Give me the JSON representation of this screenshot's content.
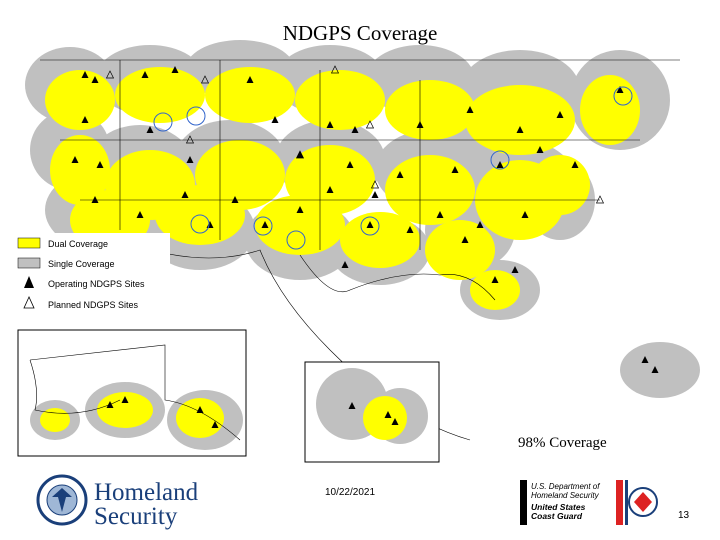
{
  "header": {
    "title": "NDGPS Coverage"
  },
  "legend": {
    "items": [
      {
        "label": "Dual Coverage"
      },
      {
        "label": "Single Coverage"
      },
      {
        "label": "Operating NDGPS Sites"
      },
      {
        "label": "Planned NDGPS Sites"
      }
    ]
  },
  "annotation": "98% Coverage",
  "footer": {
    "date": "10/22/2021",
    "page_number": "13",
    "dhs_logo": {
      "line1": "Homeland",
      "line2": "Security"
    },
    "uscg_logo": {
      "line1": "U.S. Department of",
      "line2": "Homeland Security",
      "line3": "United States",
      "line4": "Coast Guard"
    }
  }
}
